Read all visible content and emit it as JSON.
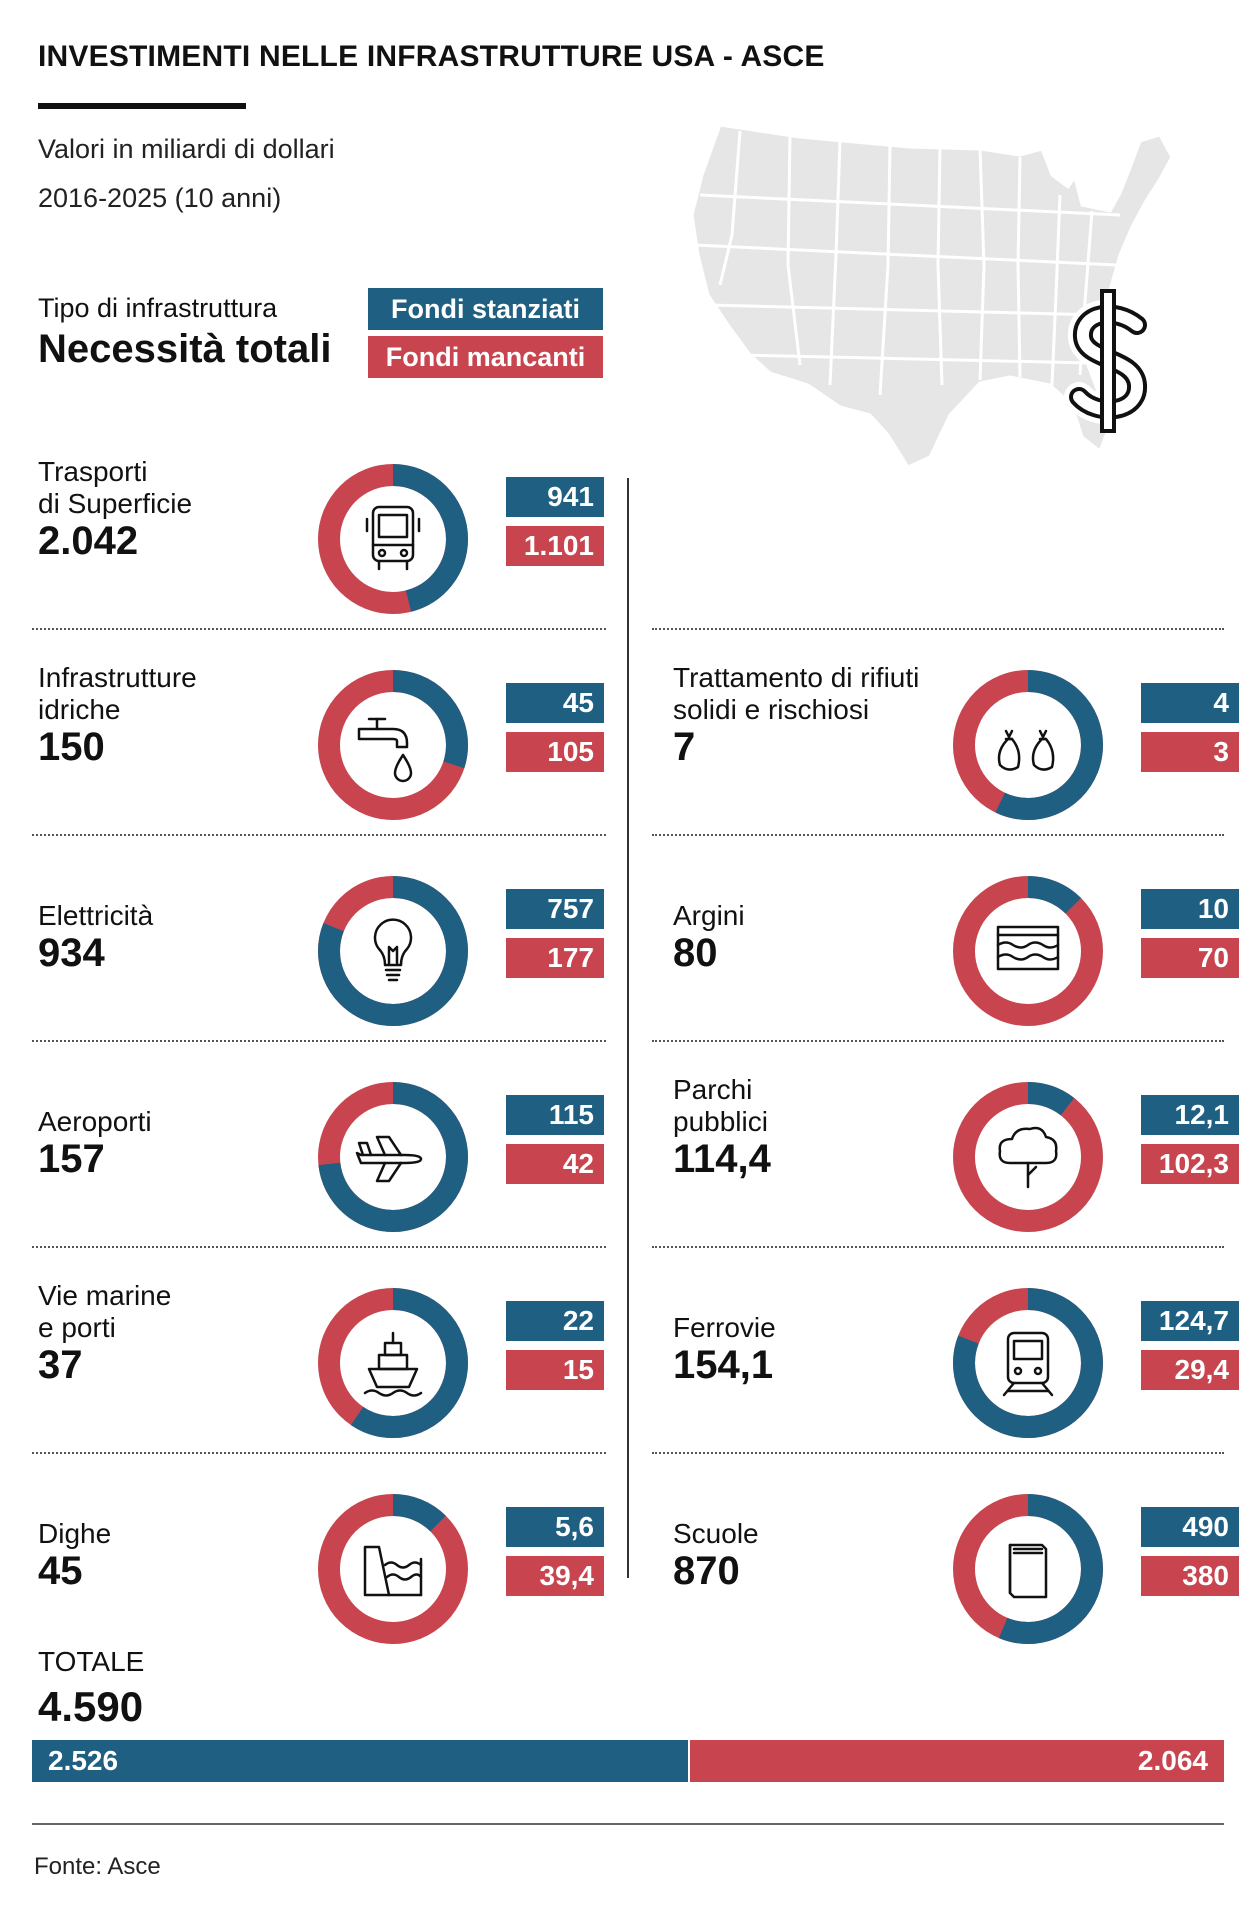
{
  "title": "INVESTIMENTI NELLE INFRASTRUTTURE USA - ASCE",
  "subtitle1": "Valori in miliardi di dollari",
  "subtitle2": "2016-2025 (10 anni)",
  "legend": {
    "type_label": "Tipo di infrastruttura",
    "total_label": "Necessità totali",
    "funded_label": "Fondi stanziati",
    "gap_label": "Fondi mancanti"
  },
  "colors": {
    "funded": "#1f5f82",
    "gap": "#c8454f",
    "map": "#e6e6e6"
  },
  "chart_data": {
    "type": "donut",
    "unit": "miliardi di dollari",
    "series_names": [
      "Fondi stanziati",
      "Fondi mancanti"
    ],
    "categories": [
      {
        "name": [
          "Trasporti",
          "di Superficie"
        ],
        "total": "2.042",
        "funded": 941,
        "gap": 1101,
        "funded_label": "941",
        "gap_label": "1.101",
        "icon": "bus-icon"
      },
      {
        "name": [
          "Infrastrutture",
          "idriche"
        ],
        "total": "150",
        "funded": 45,
        "gap": 105,
        "funded_label": "45",
        "gap_label": "105",
        "icon": "faucet-icon"
      },
      {
        "name": [
          "Elettricità"
        ],
        "total": "934",
        "funded": 757,
        "gap": 177,
        "funded_label": "757",
        "gap_label": "177",
        "icon": "lightbulb-icon"
      },
      {
        "name": [
          "Aeroporti"
        ],
        "total": "157",
        "funded": 115,
        "gap": 42,
        "funded_label": "115",
        "gap_label": "42",
        "icon": "airplane-icon"
      },
      {
        "name": [
          "Vie marine",
          "e porti"
        ],
        "total": "37",
        "funded": 22,
        "gap": 15,
        "funded_label": "22",
        "gap_label": "15",
        "icon": "ship-icon"
      },
      {
        "name": [
          "Dighe"
        ],
        "total": "45",
        "funded": 5.6,
        "gap": 39.4,
        "funded_label": "5,6",
        "gap_label": "39,4",
        "icon": "dam-icon"
      },
      {
        "name": [
          "Trattamento di rifiuti",
          "solidi e rischiosi"
        ],
        "total": "7",
        "funded": 4,
        "gap": 3,
        "funded_label": "4",
        "gap_label": "3",
        "icon": "waste-bags-icon"
      },
      {
        "name": [
          "Argini"
        ],
        "total": "80",
        "funded": 10,
        "gap": 70,
        "funded_label": "10",
        "gap_label": "70",
        "icon": "waves-icon"
      },
      {
        "name": [
          "Parchi",
          "pubblici"
        ],
        "total": "114,4",
        "funded": 12.1,
        "gap": 102.3,
        "funded_label": "12,1",
        "gap_label": "102,3",
        "icon": "tree-icon"
      },
      {
        "name": [
          "Ferrovie"
        ],
        "total": "154,1",
        "funded": 124.7,
        "gap": 29.4,
        "funded_label": "124,7",
        "gap_label": "29,4",
        "icon": "train-icon"
      },
      {
        "name": [
          "Scuole"
        ],
        "total": "870",
        "funded": 490,
        "gap": 380,
        "funded_label": "490",
        "gap_label": "380",
        "icon": "book-icon"
      }
    ],
    "totals": {
      "label": "TOTALE",
      "total": "4.590",
      "funded": 2526,
      "gap": 2064,
      "funded_label": "2.526",
      "gap_label": "2.064"
    }
  },
  "source": "Fonte: Asce"
}
